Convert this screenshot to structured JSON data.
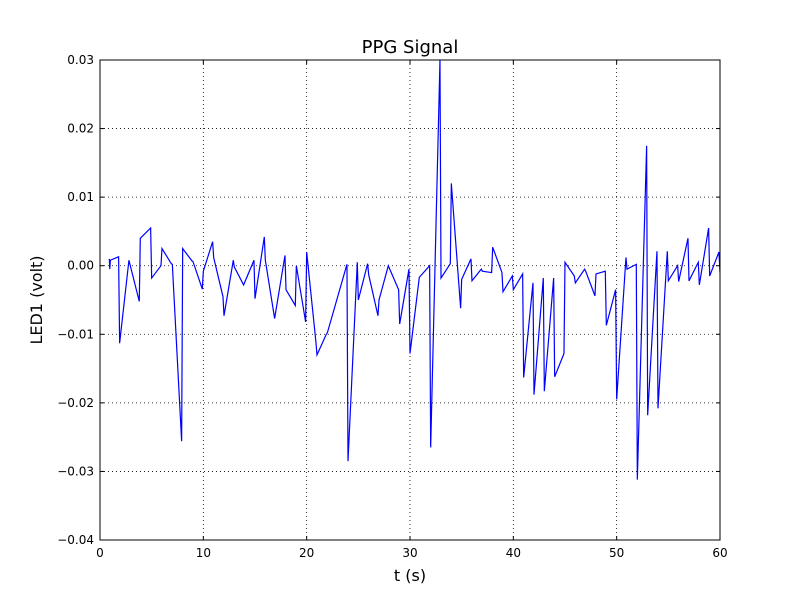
{
  "chart_data": {
    "type": "line",
    "title": "PPG Signal",
    "xlabel": "t (s)",
    "ylabel": "LED1 (volt)",
    "xlim": [
      0,
      60
    ],
    "ylim": [
      -0.04,
      0.03
    ],
    "xticks": [
      0,
      10,
      20,
      30,
      40,
      50,
      60
    ],
    "xtick_labels": [
      "0",
      "10",
      "20",
      "30",
      "40",
      "50",
      "60"
    ],
    "yticks": [
      0.03,
      0.02,
      0.01,
      0.0,
      -0.01,
      -0.02,
      -0.03,
      -0.04
    ],
    "ytick_labels": [
      "0.03",
      "0.02",
      "0.01",
      "0.00",
      "−0.01",
      "−0.02",
      "−0.03",
      "−0.04"
    ],
    "grid": true,
    "series": [
      {
        "color": "#0000ff",
        "x": [
          0.9,
          0.95,
          1.0,
          1.8,
          1.9,
          2.8,
          3.8,
          3.9,
          4.9,
          5.0,
          5.9,
          6.0,
          6.9,
          7.0,
          7.9,
          8.0,
          8.9,
          9.0,
          9.9,
          10.0,
          10.9,
          11.0,
          11.9,
          12.0,
          12.9,
          13.0,
          13.9,
          14.9,
          15.0,
          15.9,
          16.0,
          16.9,
          17.9,
          18.0,
          18.9,
          19.0,
          19.9,
          20.0,
          20.9,
          21.0,
          21.9,
          22.0,
          23.9,
          24.0,
          24.9,
          25.0,
          25.9,
          26.0,
          26.9,
          27.0,
          27.9,
          28.9,
          29.0,
          29.9,
          30.0,
          30.9,
          31.9,
          32.0,
          32.9,
          33.0,
          33.9,
          34.0,
          34.9,
          35.0,
          35.9,
          36.0,
          36.9,
          37.0,
          37.9,
          38.0,
          38.9,
          39.0,
          39.9,
          40.0,
          40.9,
          41.0,
          41.9,
          42.0,
          42.9,
          43.0,
          43.9,
          44.0,
          44.9,
          45.0,
          45.9,
          46.0,
          46.9,
          47.0,
          47.9,
          48.0,
          48.9,
          49.0,
          49.9,
          50.0,
          50.9,
          51.0,
          51.9,
          52.0,
          52.9,
          53.0,
          53.9,
          54.0,
          54.9,
          55.0,
          55.9,
          56.0,
          56.9,
          57.0,
          57.9,
          58.0,
          58.9,
          59.0,
          59.9,
          60.0
        ],
        "y": [
          0.001,
          -0.0005,
          0.0008,
          0.0013,
          -0.0113,
          0.0008,
          -0.0052,
          0.004,
          0.0055,
          -0.0018,
          0.0,
          0.0025,
          0.0003,
          0.0002,
          -0.0256,
          0.0025,
          0.0007,
          0.0006,
          -0.0034,
          -0.0008,
          0.0035,
          0.0012,
          -0.0045,
          -0.0073,
          0.0008,
          -0.0002,
          -0.0028,
          0.0008,
          -0.0048,
          0.0042,
          0.0008,
          -0.0077,
          0.0015,
          -0.0035,
          -0.0058,
          0.0,
          -0.0082,
          0.002,
          -0.0112,
          -0.013,
          -0.01,
          -0.0098,
          0.0002,
          -0.0285,
          0.0005,
          -0.005,
          0.0003,
          -0.0013,
          -0.0073,
          -0.005,
          0.0,
          -0.0035,
          -0.0085,
          -0.0005,
          -0.0128,
          -0.0017,
          0.0,
          -0.0265,
          0.03,
          -0.0018,
          0.0003,
          0.012,
          -0.0062,
          -0.002,
          0.001,
          -0.0022,
          -0.0005,
          -0.0008,
          -0.001,
          0.0027,
          -0.001,
          -0.0038,
          -0.0015,
          -0.0035,
          -0.0012,
          -0.0163,
          -0.0025,
          -0.0188,
          -0.0018,
          -0.0183,
          -0.0018,
          -0.0162,
          -0.0128,
          0.0005,
          -0.0015,
          -0.0025,
          -0.0005,
          -0.0008,
          -0.0044,
          -0.0012,
          -0.0008,
          -0.0087,
          -0.0035,
          -0.0195,
          0.0012,
          -0.0005,
          0.0002,
          -0.0312,
          0.0175,
          -0.0218,
          0.0021,
          -0.0208,
          0.0021,
          -0.0022,
          0.0,
          -0.0023,
          0.004,
          -0.0022,
          0.0005,
          -0.0028,
          0.0055,
          -0.0015,
          0.002,
          -0.001
        ]
      }
    ]
  }
}
